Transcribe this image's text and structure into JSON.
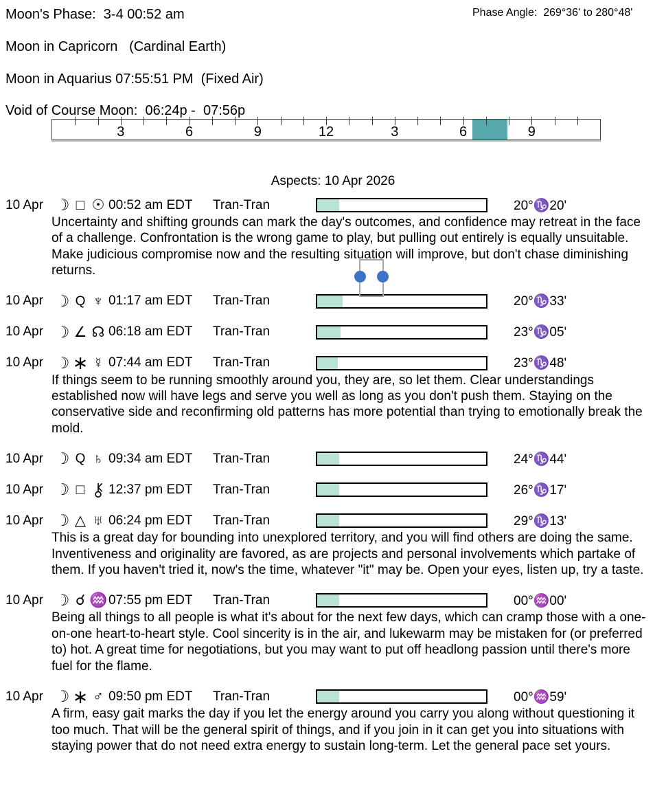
{
  "header": {
    "moons_phase": "Moon's Phase:  3-4 00:52 am",
    "phase_angle": "Phase Angle:  269°36' to 280°48'",
    "moon_in_current": "Moon in Capricorn   (Cardinal Earth)",
    "moon_in_next": "Moon in Aquarius 07:55:51 PM  (Fixed Air)",
    "void_of_course": "Void of Course Moon:  06:24p -  07:56p"
  },
  "ruler": {
    "hours_total": 24,
    "labels": [
      {
        "text": "3",
        "hour": 3
      },
      {
        "text": "6",
        "hour": 6
      },
      {
        "text": "9",
        "hour": 9
      },
      {
        "text": "12",
        "hour": 12
      },
      {
        "text": "3",
        "hour": 15
      },
      {
        "text": "6",
        "hour": 18
      },
      {
        "text": "9",
        "hour": 21
      }
    ],
    "void_highlight": {
      "start_hour": 18.4,
      "end_hour": 19.93,
      "color": "#57a8ab"
    }
  },
  "aspects_title": "Aspects: 10 Apr 2026",
  "colors": {
    "bar_fill": "#b9e3d4",
    "void_block": "#57a8ab",
    "handle_dot_blue": "#3d72c4",
    "handle_rect_gray": "#a8a8a8"
  },
  "aspects": [
    {
      "date": "10 Apr",
      "p1": "☽",
      "p1_name": "moon",
      "asp": "□",
      "asp_name": "square",
      "p2": "☉",
      "p2_name": "sun",
      "time": "00:52 am EDT",
      "type": "Tran-Tran",
      "fill_pct": 13,
      "degree": "20°♑20'",
      "desc": "Uncertainty and shifting grounds can mark the day's outcomes, and confidence may retreat in the face of a challenge. Confrontation is the wrong game to play, but pulling out entirely is equally unsuitable. Make judicious compromise now and the resulting situation will improve, but don't chase diminishing returns."
    },
    {
      "date": "10 Apr",
      "p1": "☽",
      "p1_name": "moon",
      "asp": "Q",
      "asp_name": "quincunx",
      "p2": "♆",
      "p2_name": "neptune",
      "time": "01:17 am EDT",
      "type": "Tran-Tran",
      "fill_pct": 15,
      "degree": "20°♑33'",
      "desc": ""
    },
    {
      "date": "10 Apr",
      "p1": "☽",
      "p1_name": "moon",
      "asp": "∠",
      "asp_name": "semi-square",
      "p2": "☊",
      "p2_name": "north-node",
      "time": "06:18 am EDT",
      "type": "Tran-Tran",
      "fill_pct": 14,
      "degree": "23°♑05'",
      "desc": ""
    },
    {
      "date": "10 Apr",
      "p1": "☽",
      "p1_name": "moon",
      "asp": "∗",
      "asp_name": "sextile",
      "p2": "☿",
      "p2_name": "mercury",
      "time": "07:44 am EDT",
      "type": "Tran-Tran",
      "fill_pct": 12,
      "degree": "23°♑48'",
      "desc": "If things seem to be running smoothly around you, they are, so let them. Clear understandings established now will have legs and serve you well as long as you don't push them. Staying on the conservative side and reconfirming old patterns has more potential than trying to emotionally break the mold."
    },
    {
      "date": "10 Apr",
      "p1": "☽",
      "p1_name": "moon",
      "asp": "Q",
      "asp_name": "quincunx",
      "p2": "♄",
      "p2_name": "saturn",
      "time": "09:34 am EDT",
      "type": "Tran-Tran",
      "fill_pct": 13,
      "degree": "24°♑44'",
      "desc": ""
    },
    {
      "date": "10 Apr",
      "p1": "☽",
      "p1_name": "moon",
      "asp": "□",
      "asp_name": "square",
      "p2": "⚷",
      "p2_name": "chiron",
      "time": "12:37 pm EDT",
      "type": "Tran-Tran",
      "fill_pct": 13,
      "degree": "26°♑17'",
      "desc": ""
    },
    {
      "date": "10 Apr",
      "p1": "☽",
      "p1_name": "moon",
      "asp": "△",
      "asp_name": "trine",
      "p2": "♅",
      "p2_name": "uranus",
      "time": "06:24 pm EDT",
      "type": "Tran-Tran",
      "fill_pct": 13,
      "degree": "29°♑13'",
      "desc": "This is a great day for bounding into unexplored territory, and you will find others are doing the same. Inventiveness and originality are favored, as are projects and personal involvements which partake of them. If you haven't tried it, now's the time, whatever \"it\" may be. Open your eyes, listen up, try a taste."
    },
    {
      "date": "10 Apr",
      "p1": "☽",
      "p1_name": "moon",
      "asp": "☌",
      "asp_name": "conjunction",
      "p2": "♒",
      "p2_name": "aquarius-ingress",
      "time": "07:55 pm EDT",
      "type": "Tran-Tran",
      "fill_pct": 13,
      "degree": "00°♒00'",
      "desc": "Being all things to all people is what it's about for the next few days, which can cramp those with a one-on-one heart-to-heart style. Cool sincerity is in the air, and lukewarm may be mistaken for (or preferred to) hot. A great time for negotiations, but you may want to put off headlong passion until there's more fuel for the flame."
    },
    {
      "date": "10 Apr",
      "p1": "☽",
      "p1_name": "moon",
      "asp": "∗",
      "asp_name": "sextile",
      "p2": "♂",
      "p2_name": "mars",
      "time": "09:50 pm EDT",
      "type": "Tran-Tran",
      "fill_pct": 13,
      "degree": "00°♒59'",
      "desc": "A firm, easy gait marks the day if you let the energy around you carry you along without questioning it too much. That will be the general spirit of things, and if you join in it can get you into situations with staying power that do not need extra energy to sustain long-term. Let the general pace set yours."
    }
  ]
}
